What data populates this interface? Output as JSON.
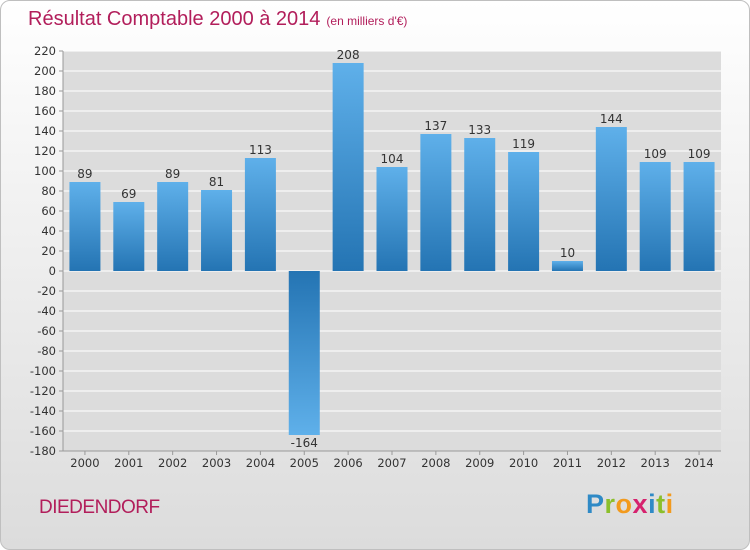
{
  "chart_data": {
    "type": "bar",
    "title": "Résultat Comptable 2000 à 2014",
    "subtitle": "(en milliers d'€)",
    "categories": [
      "2000",
      "2001",
      "2002",
      "2003",
      "2004",
      "2005",
      "2006",
      "2007",
      "2008",
      "2009",
      "2010",
      "2011",
      "2012",
      "2013",
      "2014"
    ],
    "values": [
      89,
      69,
      89,
      81,
      113,
      -164,
      208,
      104,
      137,
      133,
      119,
      10,
      144,
      109,
      109
    ],
    "value_labels": [
      "89",
      "69",
      "89",
      "81",
      "113",
      "-164",
      "208",
      "104",
      "137",
      "133",
      "119",
      "10",
      "144",
      "109",
      "109"
    ],
    "yticks": [
      220,
      200,
      180,
      160,
      140,
      120,
      100,
      80,
      60,
      40,
      20,
      0,
      -20,
      -40,
      -60,
      -80,
      -100,
      -120,
      -140,
      -160,
      -180
    ],
    "ytick_labels": [
      "220",
      "200",
      "180",
      "160",
      "140",
      "120",
      "100",
      "80",
      "60",
      "40",
      "20",
      "0",
      "-20",
      "-40",
      "-60",
      "-80",
      "-100",
      "-120",
      "-140",
      "-160",
      "-180"
    ],
    "ylim": [
      -180,
      220
    ],
    "xlabel": "",
    "ylabel": "",
    "grid": true,
    "bar_color": "#2e86c8",
    "bar_color_light": "#5fb0ea",
    "bar_color_dark": "#2474b3"
  },
  "location_name": "DIEDENDORF",
  "brand": {
    "letters": [
      {
        "char": "P",
        "color": "#2f8ac6"
      },
      {
        "char": "r",
        "color": "#8bbf2b"
      },
      {
        "char": "o",
        "color": "#f29a1d"
      },
      {
        "char": "x",
        "color": "#d6226e"
      },
      {
        "char": "i",
        "color": "#2f8ac6"
      },
      {
        "char": "t",
        "color": "#8bbf2b"
      },
      {
        "char": "i",
        "color": "#f29a1d"
      }
    ]
  },
  "colors": {
    "title": "#b21e5b",
    "grid": "#ffffff",
    "axis_text": "#333333"
  }
}
